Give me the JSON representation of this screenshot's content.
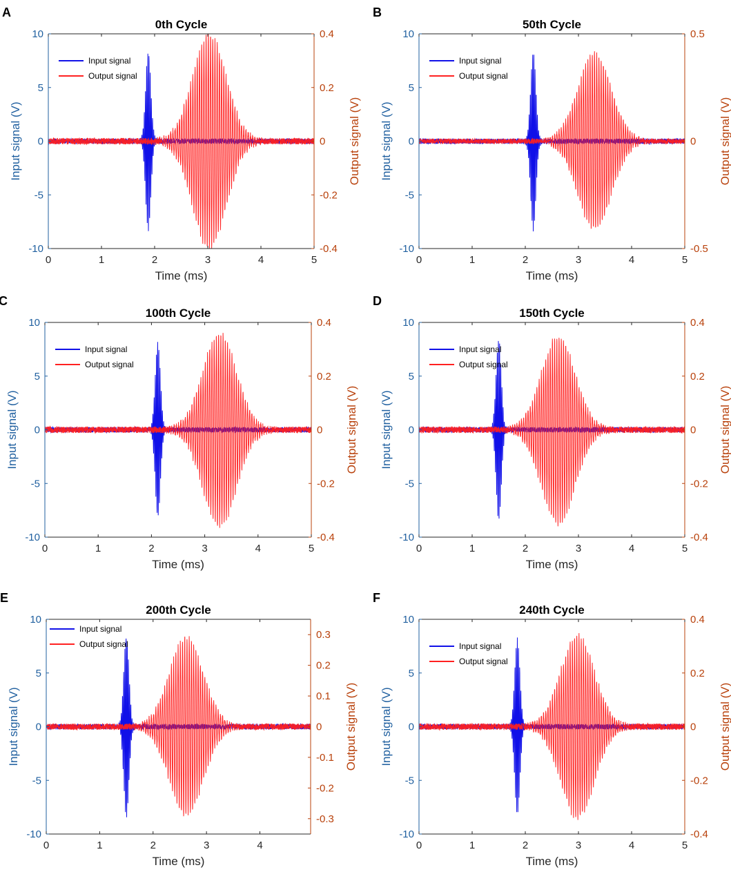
{
  "figure": {
    "colors": {
      "input": "#1010e8",
      "output": "#ff2020",
      "left_axis": "#1f5f9f",
      "right_axis": "#b8400a",
      "frame": "#262626"
    }
  },
  "chart_data": [
    {
      "panel": "A",
      "type": "line",
      "title": "0th Cycle",
      "xlabel": "Time (ms)",
      "ylabel_left": "Input signal (V)",
      "ylabel_right": "Output signal (V)",
      "xlim": [
        0,
        5
      ],
      "xticks": [
        "0",
        "1",
        "2",
        "3",
        "4",
        "5"
      ],
      "ylim_left": [
        -10,
        10
      ],
      "yticks_left": [
        "10",
        "5",
        "0",
        "-5",
        "-10"
      ],
      "ylim_right": [
        -0.4,
        0.4
      ],
      "yticks_right": [
        "0.4",
        "0.2",
        "0",
        "-0.2",
        "-0.4"
      ],
      "legend": [
        "Input signal",
        "Output signal"
      ],
      "legend_position": "top-left",
      "series": [
        {
          "name": "Input signal",
          "center_ms": 1.88,
          "half_width_ms": 0.07,
          "peak": 8.4,
          "noise": 0.25
        },
        {
          "name": "Output signal",
          "center_ms": 3.03,
          "half_width_ms": 0.45,
          "peak": 0.4,
          "noise": 0.012
        }
      ]
    },
    {
      "panel": "B",
      "type": "line",
      "title": "50th Cycle",
      "xlabel": "Time (ms)",
      "ylabel_left": "Input signal (V)",
      "ylabel_right": "Output signal (V)",
      "xlim": [
        0,
        5
      ],
      "xticks": [
        "0",
        "1",
        "2",
        "3",
        "4",
        "5"
      ],
      "ylim_left": [
        -10,
        10
      ],
      "yticks_left": [
        "10",
        "5",
        "0",
        "-5",
        "-10"
      ],
      "ylim_right": [
        -0.5,
        0.5
      ],
      "yticks_right": [
        "0.5",
        "0",
        "-0.5"
      ],
      "legend": [
        "Input signal",
        "Output signal"
      ],
      "legend_position": "top-left",
      "series": [
        {
          "name": "Input signal",
          "center_ms": 2.15,
          "half_width_ms": 0.07,
          "peak": 8.4,
          "noise": 0.25
        },
        {
          "name": "Output signal",
          "center_ms": 3.3,
          "half_width_ms": 0.45,
          "peak": 0.41,
          "noise": 0.012
        }
      ]
    },
    {
      "panel": "C",
      "type": "line",
      "title": "100th Cycle",
      "xlabel": "Time (ms)",
      "ylabel_left": "Input signal (V)",
      "ylabel_right": "Output signal (V)",
      "xlim": [
        0,
        5
      ],
      "xticks": [
        "0",
        "1",
        "2",
        "3",
        "4",
        "5"
      ],
      "ylim_left": [
        -10,
        10
      ],
      "yticks_left": [
        "10",
        "5",
        "0",
        "-5",
        "-10"
      ],
      "ylim_right": [
        -0.4,
        0.4
      ],
      "yticks_right": [
        "0.4",
        "0.2",
        "0",
        "-0.2",
        "-0.4"
      ],
      "legend": [
        "Input signal",
        "Output signal"
      ],
      "legend_position": "top-left",
      "series": [
        {
          "name": "Input signal",
          "center_ms": 2.12,
          "half_width_ms": 0.07,
          "peak": 8.2,
          "noise": 0.25
        },
        {
          "name": "Output signal",
          "center_ms": 3.28,
          "half_width_ms": 0.45,
          "peak": 0.36,
          "noise": 0.012
        }
      ]
    },
    {
      "panel": "D",
      "type": "line",
      "title": "150th Cycle",
      "xlabel": "Time (ms)",
      "ylabel_left": "Input signal (V)",
      "ylabel_right": "Output signal (V)",
      "xlim": [
        0,
        5
      ],
      "xticks": [
        "0",
        "1",
        "2",
        "3",
        "4",
        "5"
      ],
      "ylim_left": [
        -10,
        10
      ],
      "yticks_left": [
        "10",
        "5",
        "0",
        "-5",
        "-10"
      ],
      "ylim_right": [
        -0.4,
        0.4
      ],
      "yticks_right": [
        "0.4",
        "0.2",
        "0",
        "-0.2",
        "-0.4"
      ],
      "legend": [
        "Input signal",
        "Output signal"
      ],
      "legend_position": "top-left",
      "series": [
        {
          "name": "Input signal",
          "center_ms": 1.5,
          "half_width_ms": 0.07,
          "peak": 8.5,
          "noise": 0.25
        },
        {
          "name": "Output signal",
          "center_ms": 2.62,
          "half_width_ms": 0.45,
          "peak": 0.35,
          "noise": 0.012
        }
      ]
    },
    {
      "panel": "E",
      "type": "line",
      "title": "200th Cycle",
      "xlabel": "Time (ms)",
      "ylabel_left": "Input signal (V)",
      "ylabel_right": "Output signal (V)",
      "xlim": [
        0,
        4.95
      ],
      "xticks": [
        "0",
        "1",
        "2",
        "3",
        "4"
      ],
      "ylim_left": [
        -10,
        10
      ],
      "yticks_left": [
        "10",
        "5",
        "0",
        "-5",
        "-10"
      ],
      "ylim_right": [
        -0.35,
        0.35
      ],
      "yticks_right": [
        "0.3",
        "0.2",
        "0.1",
        "0",
        "-0.1",
        "-0.2",
        "-0.3"
      ],
      "legend": [
        "Input signal",
        "Output signal"
      ],
      "legend_position": "top-left",
      "series": [
        {
          "name": "Input signal",
          "center_ms": 1.5,
          "half_width_ms": 0.07,
          "peak": 8.5,
          "noise": 0.25
        },
        {
          "name": "Output signal",
          "center_ms": 2.62,
          "half_width_ms": 0.45,
          "peak": 0.29,
          "noise": 0.01
        }
      ]
    },
    {
      "panel": "F",
      "type": "line",
      "title": "240th Cycle",
      "xlabel": "Time (ms)",
      "ylabel_left": "Input signal (V)",
      "ylabel_right": "Output signal (V)",
      "xlim": [
        0,
        5
      ],
      "xticks": [
        "0",
        "1",
        "2",
        "3",
        "4",
        "5"
      ],
      "ylim_left": [
        -10,
        10
      ],
      "yticks_left": [
        "10",
        "5",
        "0",
        "-5",
        "-10"
      ],
      "ylim_right": [
        -0.4,
        0.4
      ],
      "yticks_right": [
        "0.4",
        "0.2",
        "0",
        "-0.2",
        "-0.4"
      ],
      "legend": [
        "Input signal",
        "Output signal"
      ],
      "legend_position": "top-left",
      "series": [
        {
          "name": "Input signal",
          "center_ms": 1.85,
          "half_width_ms": 0.07,
          "peak": 8.3,
          "noise": 0.25
        },
        {
          "name": "Output signal",
          "center_ms": 2.98,
          "half_width_ms": 0.45,
          "peak": 0.34,
          "noise": 0.012
        }
      ]
    }
  ]
}
